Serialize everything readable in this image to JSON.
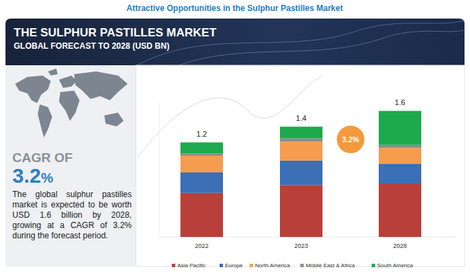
{
  "chart_data": {
    "type": "bar",
    "stacked": true,
    "header": "Attractive Opportunities in the Sulphur Pastilles Market",
    "title": "THE SULPHUR PASTILLES MARKET",
    "subtitle": "GLOBAL FORECAST TO 2028 (USD BN)",
    "categories": [
      "2022",
      "2023",
      "2028"
    ],
    "series": [
      {
        "name": "Asia Pacific",
        "color": "#b9403a",
        "values": [
          0.56,
          0.66,
          0.68
        ]
      },
      {
        "name": "Europe",
        "color": "#3b6fb6",
        "values": [
          0.26,
          0.31,
          0.25
        ]
      },
      {
        "name": "North America",
        "color": "#f59c4f",
        "values": [
          0.21,
          0.24,
          0.2
        ]
      },
      {
        "name": "Middle East & Africa",
        "color": "#8c8c8c",
        "values": [
          0.03,
          0.04,
          0.04
        ]
      },
      {
        "name": "South America",
        "color": "#1daa4c",
        "values": [
          0.14,
          0.15,
          0.43
        ]
      }
    ],
    "totals": [
      1.2,
      1.4,
      1.6
    ],
    "annotation": "3.2%",
    "cagr_title": "CAGR OF",
    "cagr_text": "3.2%",
    "description": "The global sulphur pastilles market is expected to be worth USD 1.6 billion by 2028, growing at a CAGR of 3.2% during the forecast period.",
    "ylim": [
      0,
      1.7
    ],
    "yticks": [],
    "tick_labels": "x",
    "legend": "bottom"
  }
}
